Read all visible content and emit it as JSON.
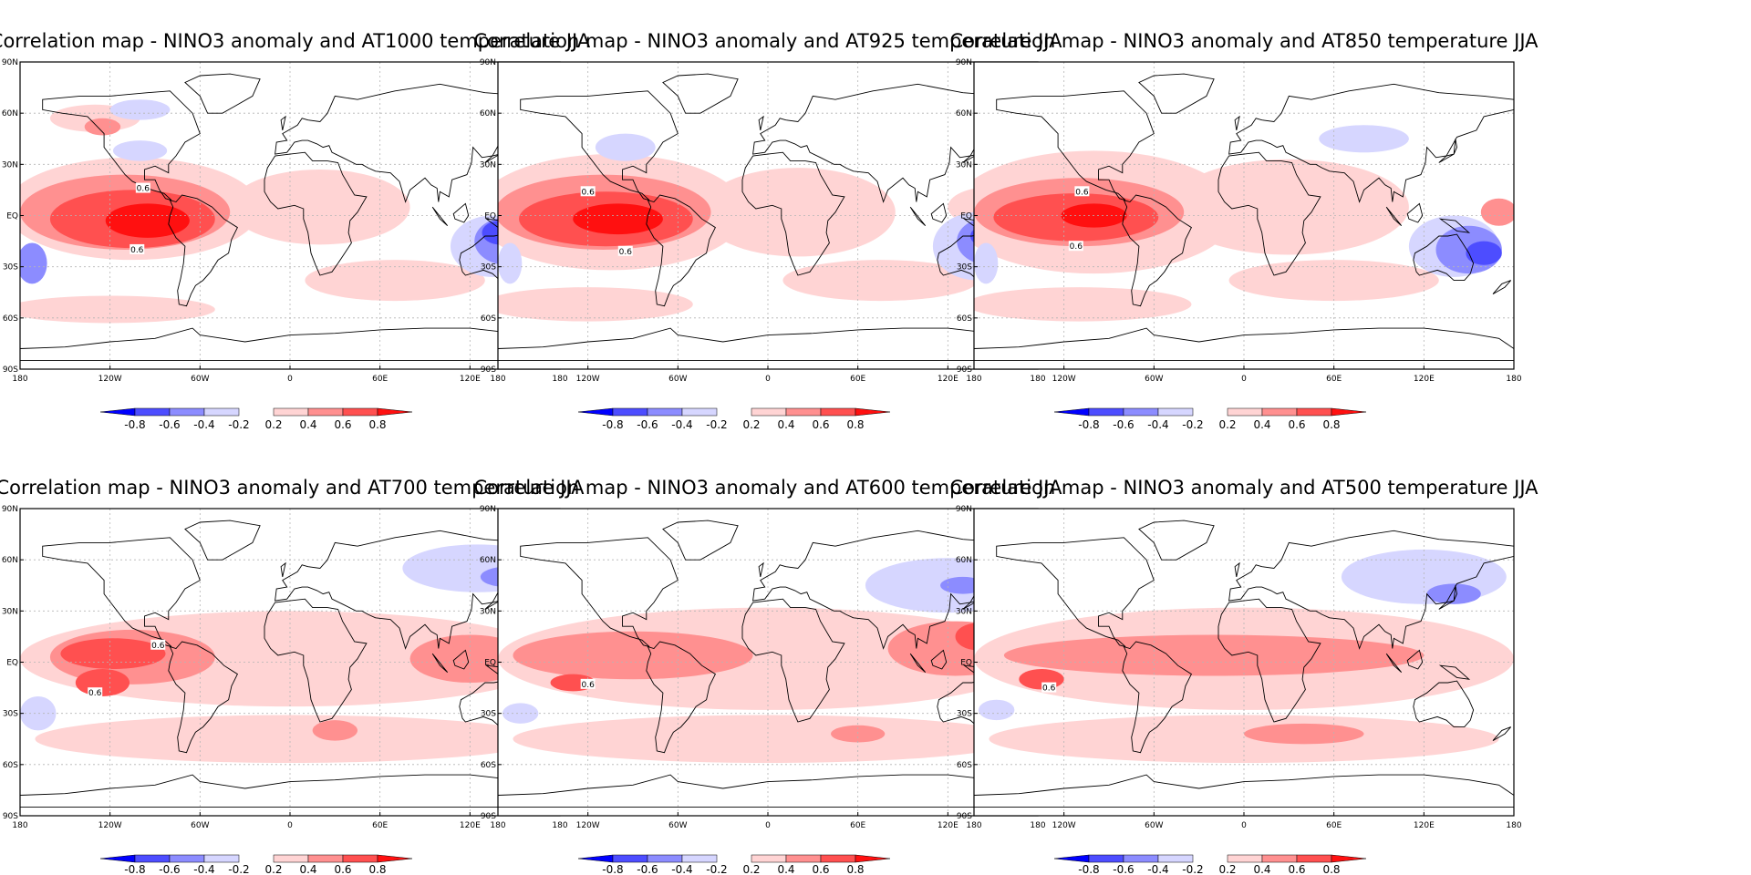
{
  "colors": {
    "neg_0.8": "#0000ff",
    "neg_0.6": "#4d4dff",
    "neg_0.4": "#8c8cff",
    "neg_0.2": "#d6d6ff",
    "pos_0.2": "#ffd4d4",
    "pos_0.4": "#ff9090",
    "pos_0.6": "#ff5050",
    "pos_0.8": "#ff1010",
    "grid": "#b5b5b5",
    "coast": "#000000"
  },
  "chart_data": [
    {
      "type": "heatmap",
      "title": "Correlation map - NINO3 anomaly and AT1000 temperature JJA",
      "x_ticks": [
        "180",
        "120W",
        "60W",
        "0",
        "60E",
        "120E",
        "180"
      ],
      "y_ticks": [
        "90N",
        "60N",
        "30N",
        "EQ",
        "30S",
        "60S",
        "90S"
      ],
      "xlim": [
        -180,
        180
      ],
      "ylim": [
        -90,
        90
      ],
      "grid": true,
      "colorbar": {
        "levels": [
          -0.8,
          -0.6,
          -0.4,
          -0.2,
          0.2,
          0.4,
          0.6,
          0.8
        ],
        "labels": [
          "-0.8",
          "-0.6",
          "-0.4",
          "-0.2",
          "0.2",
          "0.4",
          "0.6",
          "0.8"
        ]
      },
      "contour_labels": [
        {
          "text": "0.6",
          "lon": -98,
          "lat": 16
        },
        {
          "text": "0.6",
          "lon": -102,
          "lat": -20
        }
      ],
      "regions": [
        {
          "value": 0.2,
          "lon": -105,
          "lat": 4,
          "rlon": 85,
          "rlat": 30
        },
        {
          "value": 0.2,
          "lon": -120,
          "lat": -55,
          "rlon": 70,
          "rlat": 8
        },
        {
          "value": 0.2,
          "lon": 20,
          "lat": 5,
          "rlon": 60,
          "rlat": 22
        },
        {
          "value": 0.2,
          "lon": 70,
          "lat": -38,
          "rlon": 60,
          "rlat": 12
        },
        {
          "value": 0.2,
          "lon": -130,
          "lat": 57,
          "rlon": 30,
          "rlat": 8
        },
        {
          "value": 0.4,
          "lon": -125,
          "lat": 52,
          "rlon": 12,
          "rlat": 5
        },
        {
          "value": 0.4,
          "lon": -110,
          "lat": 2,
          "rlon": 70,
          "rlat": 22
        },
        {
          "value": 0.6,
          "lon": -105,
          "lat": -2,
          "rlon": 55,
          "rlat": 17
        },
        {
          "value": 0.8,
          "lon": -95,
          "lat": -3,
          "rlon": 28,
          "rlat": 10
        },
        {
          "value": -0.2,
          "lon": -100,
          "lat": 62,
          "rlon": 20,
          "rlat": 6
        },
        {
          "value": -0.2,
          "lon": -100,
          "lat": 38,
          "rlon": 18,
          "rlat": 6
        },
        {
          "value": -0.2,
          "lon": 135,
          "lat": -18,
          "rlon": 28,
          "rlat": 18
        },
        {
          "value": -0.4,
          "lon": 145,
          "lat": -15,
          "rlon": 22,
          "rlat": 14
        },
        {
          "value": -0.6,
          "lon": 140,
          "lat": -10,
          "rlon": 12,
          "rlat": 7
        },
        {
          "value": -0.4,
          "lon": -172,
          "lat": -28,
          "rlon": 10,
          "rlat": 12
        }
      ]
    },
    {
      "type": "heatmap",
      "title": "Correlation map - NINO3 anomaly and AT925 temperature JJA",
      "x_ticks": [
        "180",
        "120W",
        "60W",
        "0",
        "60E",
        "120E",
        "180"
      ],
      "y_ticks": [
        "90N",
        "60N",
        "30N",
        "EQ",
        "30S",
        "60S",
        "90S"
      ],
      "xlim": [
        -180,
        180
      ],
      "ylim": [
        -90,
        90
      ],
      "grid": true,
      "colorbar": {
        "levels": [
          -0.8,
          -0.6,
          -0.4,
          -0.2,
          0.2,
          0.4,
          0.6,
          0.8
        ],
        "labels": [
          "-0.8",
          "-0.6",
          "-0.4",
          "-0.2",
          "0.2",
          "0.4",
          "0.6",
          "0.8"
        ]
      },
      "contour_labels": [
        {
          "text": "0.6",
          "lon": -120,
          "lat": 14
        },
        {
          "text": "0.6",
          "lon": -95,
          "lat": -21
        }
      ],
      "regions": [
        {
          "value": 0.2,
          "lon": -105,
          "lat": 2,
          "rlon": 90,
          "rlat": 34
        },
        {
          "value": 0.2,
          "lon": -120,
          "lat": -52,
          "rlon": 70,
          "rlat": 10
        },
        {
          "value": 0.2,
          "lon": 20,
          "lat": 2,
          "rlon": 65,
          "rlat": 26
        },
        {
          "value": 0.2,
          "lon": 75,
          "lat": -38,
          "rlon": 65,
          "rlat": 12
        },
        {
          "value": 0.2,
          "lon": 150,
          "lat": 5,
          "rlon": 30,
          "rlat": 12
        },
        {
          "value": 0.4,
          "lon": -110,
          "lat": 2,
          "rlon": 72,
          "rlat": 22
        },
        {
          "value": 0.4,
          "lon": 165,
          "lat": 2,
          "rlon": 15,
          "rlat": 8
        },
        {
          "value": 0.6,
          "lon": -108,
          "lat": -2,
          "rlon": 58,
          "rlat": 16
        },
        {
          "value": 0.8,
          "lon": -100,
          "lat": -2,
          "rlon": 30,
          "rlat": 9
        },
        {
          "value": -0.2,
          "lon": -95,
          "lat": 40,
          "rlon": 20,
          "rlat": 8
        },
        {
          "value": -0.2,
          "lon": 140,
          "lat": -18,
          "rlon": 30,
          "rlat": 20
        },
        {
          "value": -0.4,
          "lon": 148,
          "lat": -15,
          "rlon": 22,
          "rlat": 14
        },
        {
          "value": -0.6,
          "lon": 145,
          "lat": -12,
          "rlon": 10,
          "rlat": 6
        },
        {
          "value": -0.2,
          "lon": -172,
          "lat": -28,
          "rlon": 8,
          "rlat": 12
        }
      ]
    },
    {
      "type": "heatmap",
      "title": "Correlation map - NINO3 anomaly and AT850 temperature JJA",
      "x_ticks": [
        "180",
        "120W",
        "60W",
        "0",
        "60E",
        "120E",
        "180"
      ],
      "y_ticks": [
        "90N",
        "60N",
        "30N",
        "EQ",
        "30S",
        "60S",
        "90S"
      ],
      "xlim": [
        -180,
        180
      ],
      "ylim": [
        -90,
        90
      ],
      "grid": true,
      "colorbar": {
        "levels": [
          -0.8,
          -0.6,
          -0.4,
          -0.2,
          0.2,
          0.4,
          0.6,
          0.8
        ],
        "labels": [
          "-0.8",
          "-0.6",
          "-0.4",
          "-0.2",
          "0.2",
          "0.4",
          "0.6",
          "0.8"
        ]
      },
      "contour_labels": [
        {
          "text": "0.6",
          "lon": -108,
          "lat": 14
        },
        {
          "text": "0.6",
          "lon": -112,
          "lat": -18
        }
      ],
      "regions": [
        {
          "value": 0.2,
          "lon": -100,
          "lat": 2,
          "rlon": 95,
          "rlat": 36
        },
        {
          "value": 0.2,
          "lon": -110,
          "lat": -52,
          "rlon": 75,
          "rlat": 10
        },
        {
          "value": 0.2,
          "lon": 30,
          "lat": 5,
          "rlon": 80,
          "rlat": 28
        },
        {
          "value": 0.2,
          "lon": 60,
          "lat": -38,
          "rlon": 70,
          "rlat": 12
        },
        {
          "value": 0.4,
          "lon": -110,
          "lat": 2,
          "rlon": 70,
          "rlat": 20
        },
        {
          "value": 0.4,
          "lon": 170,
          "lat": 2,
          "rlon": 12,
          "rlat": 8
        },
        {
          "value": 0.6,
          "lon": -112,
          "lat": -1,
          "rlon": 55,
          "rlat": 14
        },
        {
          "value": 0.8,
          "lon": -100,
          "lat": 0,
          "rlon": 22,
          "rlat": 7
        },
        {
          "value": -0.2,
          "lon": 80,
          "lat": 45,
          "rlon": 30,
          "rlat": 8
        },
        {
          "value": -0.2,
          "lon": 140,
          "lat": -18,
          "rlon": 30,
          "rlat": 18
        },
        {
          "value": -0.4,
          "lon": 150,
          "lat": -20,
          "rlon": 22,
          "rlat": 14
        },
        {
          "value": -0.6,
          "lon": 160,
          "lat": -22,
          "rlon": 12,
          "rlat": 7
        },
        {
          "value": -0.2,
          "lon": -172,
          "lat": -28,
          "rlon": 8,
          "rlat": 12
        }
      ]
    },
    {
      "type": "heatmap",
      "title": "Correlation map - NINO3 anomaly and AT700 temperature JJA",
      "x_ticks": [
        "180",
        "120W",
        "60W",
        "0",
        "60E",
        "120E",
        "180"
      ],
      "y_ticks": [
        "90N",
        "60N",
        "30N",
        "EQ",
        "30S",
        "60S",
        "90S"
      ],
      "xlim": [
        -180,
        180
      ],
      "ylim": [
        -90,
        90
      ],
      "grid": true,
      "colorbar": {
        "levels": [
          -0.8,
          -0.6,
          -0.4,
          -0.2,
          0.2,
          0.4,
          0.6,
          0.8
        ],
        "labels": [
          "-0.8",
          "-0.6",
          "-0.4",
          "-0.2",
          "0.2",
          "0.4",
          "0.6",
          "0.8"
        ]
      },
      "contour_labels": [
        {
          "text": "0.6",
          "lon": -88,
          "lat": 10
        },
        {
          "text": "0.6",
          "lon": -130,
          "lat": -18
        }
      ],
      "regions": [
        {
          "value": 0.2,
          "lon": 0,
          "lat": 2,
          "rlon": 180,
          "rlat": 28
        },
        {
          "value": 0.2,
          "lon": 0,
          "lat": -45,
          "rlon": 170,
          "rlat": 14
        },
        {
          "value": 0.4,
          "lon": -105,
          "lat": 3,
          "rlon": 55,
          "rlat": 16
        },
        {
          "value": 0.4,
          "lon": 120,
          "lat": 2,
          "rlon": 40,
          "rlat": 14
        },
        {
          "value": 0.4,
          "lon": 30,
          "lat": -40,
          "rlon": 15,
          "rlat": 6
        },
        {
          "value": 0.6,
          "lon": -118,
          "lat": 5,
          "rlon": 35,
          "rlat": 9
        },
        {
          "value": 0.6,
          "lon": -125,
          "lat": -12,
          "rlon": 18,
          "rlat": 8
        },
        {
          "value": -0.2,
          "lon": 125,
          "lat": 55,
          "rlon": 50,
          "rlat": 14
        },
        {
          "value": -0.4,
          "lon": 145,
          "lat": 50,
          "rlon": 18,
          "rlat": 6
        },
        {
          "value": -0.2,
          "lon": -168,
          "lat": -30,
          "rlon": 12,
          "rlat": 10
        },
        {
          "value": -0.4,
          "lon": 170,
          "lat": -28,
          "rlon": 10,
          "rlat": 8
        }
      ]
    },
    {
      "type": "heatmap",
      "title": "Correlation map - NINO3 anomaly and AT600 temperature JJA",
      "x_ticks": [
        "180",
        "120W",
        "60W",
        "0",
        "60E",
        "120E",
        "180"
      ],
      "y_ticks": [
        "90N",
        "60N",
        "30N",
        "EQ",
        "30S",
        "60S",
        "90S"
      ],
      "xlim": [
        -180,
        180
      ],
      "ylim": [
        -90,
        90
      ],
      "grid": true,
      "colorbar": {
        "levels": [
          -0.8,
          -0.6,
          -0.4,
          -0.2,
          0.2,
          0.4,
          0.6,
          0.8
        ],
        "labels": [
          "-0.8",
          "-0.6",
          "-0.4",
          "-0.2",
          "0.2",
          "0.4",
          "0.6",
          "0.8"
        ]
      },
      "contour_labels": [
        {
          "text": "0.6",
          "lon": -120,
          "lat": -13
        }
      ],
      "regions": [
        {
          "value": 0.2,
          "lon": 0,
          "lat": 2,
          "rlon": 180,
          "rlat": 30
        },
        {
          "value": 0.2,
          "lon": 0,
          "lat": -45,
          "rlon": 170,
          "rlat": 14
        },
        {
          "value": 0.4,
          "lon": -90,
          "lat": 4,
          "rlon": 80,
          "rlat": 14
        },
        {
          "value": 0.4,
          "lon": 125,
          "lat": 8,
          "rlon": 45,
          "rlat": 16
        },
        {
          "value": 0.4,
          "lon": 60,
          "lat": -42,
          "rlon": 18,
          "rlat": 5
        },
        {
          "value": 0.6,
          "lon": -130,
          "lat": -12,
          "rlon": 15,
          "rlat": 5
        },
        {
          "value": 0.6,
          "lon": 140,
          "lat": 15,
          "rlon": 15,
          "rlat": 8
        },
        {
          "value": -0.2,
          "lon": 120,
          "lat": 45,
          "rlon": 55,
          "rlat": 16
        },
        {
          "value": -0.4,
          "lon": 130,
          "lat": 45,
          "rlon": 15,
          "rlat": 5
        },
        {
          "value": -0.2,
          "lon": -165,
          "lat": -30,
          "rlon": 12,
          "rlat": 6
        }
      ]
    },
    {
      "type": "heatmap",
      "title": "Correlation map - NINO3 anomaly and AT500 temperature JJA",
      "x_ticks": [
        "180",
        "120W",
        "60W",
        "0",
        "60E",
        "120E",
        "180"
      ],
      "y_ticks": [
        "90N",
        "60N",
        "30N",
        "EQ",
        "30S",
        "60S",
        "90S"
      ],
      "xlim": [
        -180,
        180
      ],
      "ylim": [
        -90,
        90
      ],
      "grid": true,
      "colorbar": {
        "levels": [
          -0.8,
          -0.6,
          -0.4,
          -0.2,
          0.2,
          0.4,
          0.6,
          0.8
        ],
        "labels": [
          "-0.8",
          "-0.6",
          "-0.4",
          "-0.2",
          "0.2",
          "0.4",
          "0.6",
          "0.8"
        ]
      },
      "contour_labels": [
        {
          "text": "0.6",
          "lon": -130,
          "lat": -15
        }
      ],
      "regions": [
        {
          "value": 0.2,
          "lon": 0,
          "lat": 2,
          "rlon": 180,
          "rlat": 30
        },
        {
          "value": 0.2,
          "lon": 0,
          "lat": -45,
          "rlon": 170,
          "rlat": 14
        },
        {
          "value": 0.4,
          "lon": -20,
          "lat": 4,
          "rlon": 140,
          "rlat": 12
        },
        {
          "value": 0.4,
          "lon": 40,
          "lat": -42,
          "rlon": 40,
          "rlat": 6
        },
        {
          "value": 0.6,
          "lon": -135,
          "lat": -10,
          "rlon": 15,
          "rlat": 6
        },
        {
          "value": -0.2,
          "lon": 120,
          "lat": 50,
          "rlon": 55,
          "rlat": 16
        },
        {
          "value": -0.4,
          "lon": 140,
          "lat": 40,
          "rlon": 18,
          "rlat": 6
        },
        {
          "value": -0.2,
          "lon": -165,
          "lat": -28,
          "rlon": 12,
          "rlat": 6
        }
      ]
    }
  ]
}
